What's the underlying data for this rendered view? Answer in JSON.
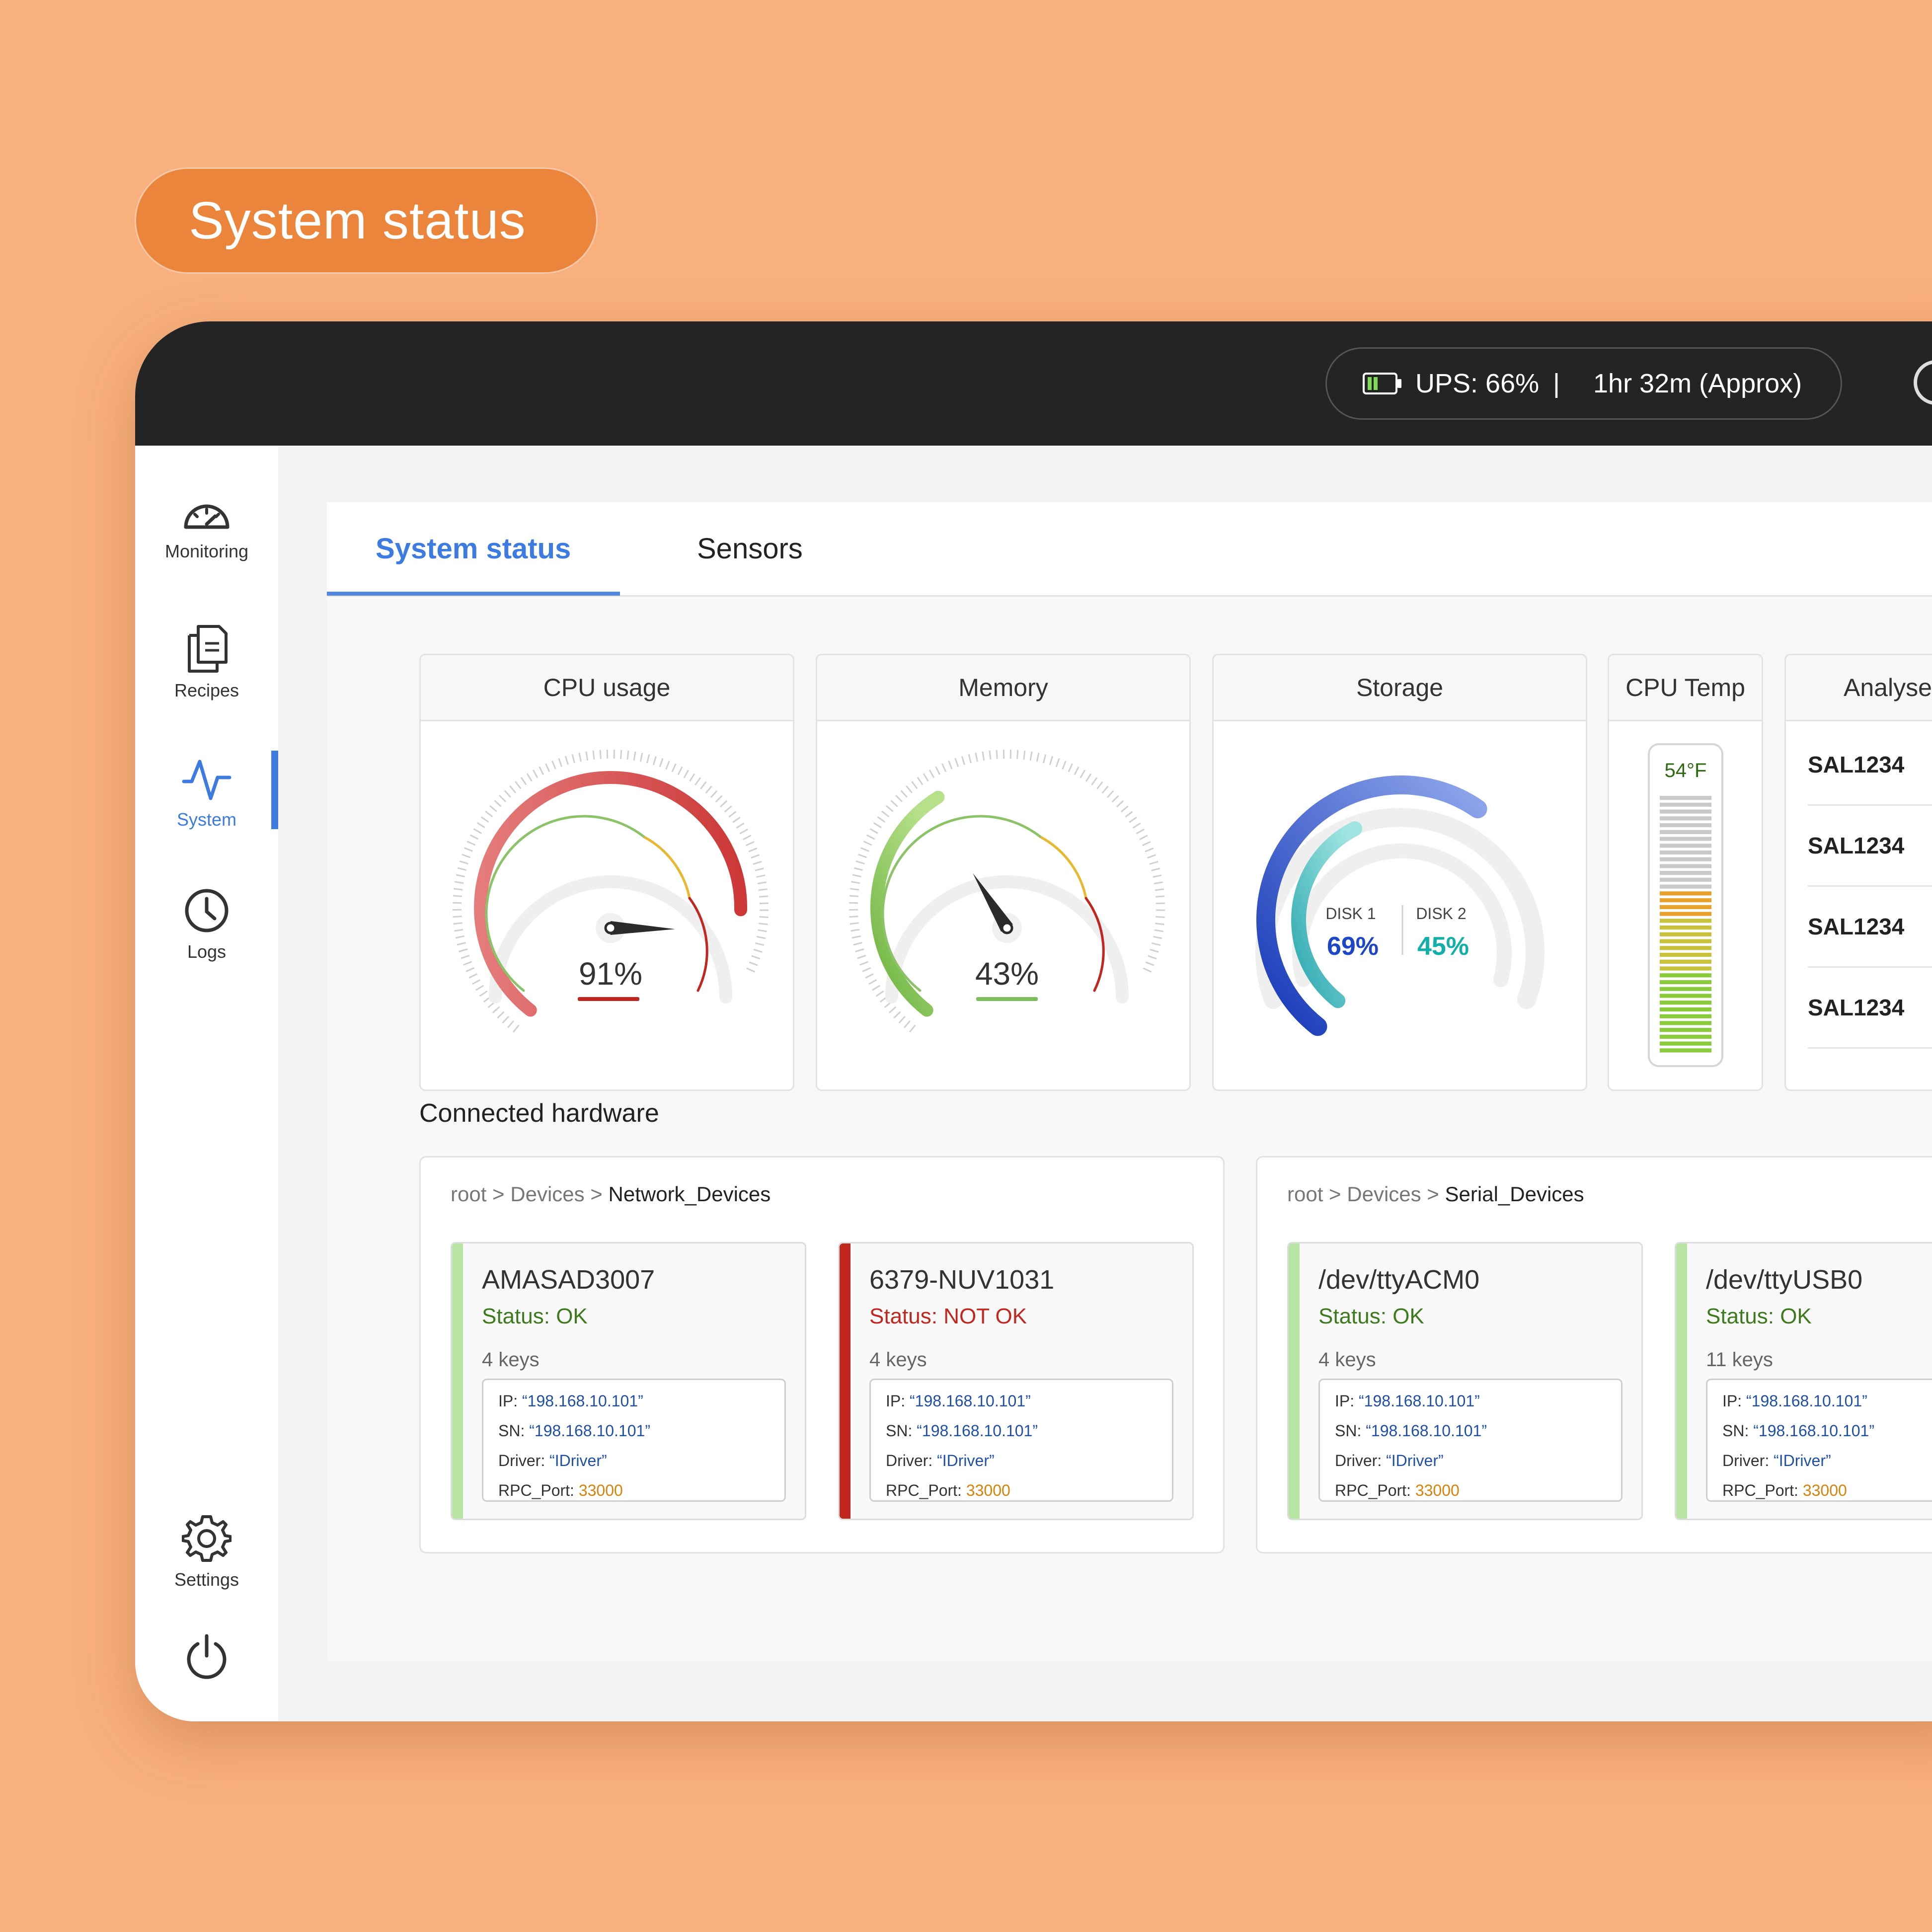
{
  "badge": {
    "title": "System status"
  },
  "topbar": {
    "ups_label": "UPS: 66%",
    "separator": "|",
    "runtime": "1hr 32m (Approx)"
  },
  "sidebar": {
    "items": [
      {
        "label": "Monitoring",
        "icon": "speedometer-icon"
      },
      {
        "label": "Recipes",
        "icon": "documents-icon"
      },
      {
        "label": "System",
        "icon": "activity-icon",
        "active": true
      },
      {
        "label": "Logs",
        "icon": "clock-icon"
      },
      {
        "label": "Settings",
        "icon": "gear-icon"
      },
      {
        "label": "",
        "icon": "power-icon"
      }
    ]
  },
  "tabs": [
    {
      "label": "System status",
      "active": true
    },
    {
      "label": "Sensors"
    }
  ],
  "widgets": {
    "cpu": {
      "title": "CPU usage",
      "value": "91%",
      "fraction": 0.91
    },
    "memory": {
      "title": "Memory",
      "value": "43%",
      "fraction": 0.43
    },
    "storage": {
      "title": "Storage",
      "disk1": {
        "label": "DISK 1",
        "value": "69%",
        "fraction": 0.69
      },
      "disk2": {
        "label": "DISK 2",
        "value": "45%",
        "fraction": 0.45
      }
    },
    "cpu_temp": {
      "title": "CPU Temp",
      "value": "54°F",
      "level": 0.62
    },
    "analyse": {
      "title": "Analyse",
      "items": [
        "SAL1234",
        "SAL1234",
        "SAL1234",
        "SAL1234"
      ]
    }
  },
  "hardware": {
    "title": "Connected hardware",
    "groups": [
      {
        "crumb_root": "root",
        "crumb_mid": "Devices",
        "crumb_leaf": "Network_Devices",
        "devices": [
          {
            "name": "AMASAD3007",
            "status": "Status: OK",
            "ok": true,
            "keys": "4 keys",
            "ip": "“198.168.10.101”",
            "sn": "“198.168.10.101”",
            "driver": "“IDriver”",
            "rpc": "33000"
          },
          {
            "name": "6379-NUV1031",
            "status": "Status: NOT OK",
            "ok": false,
            "keys": "4 keys",
            "ip": "“198.168.10.101”",
            "sn": "“198.168.10.101”",
            "driver": "“IDriver”",
            "rpc": "33000"
          }
        ]
      },
      {
        "crumb_root": "root",
        "crumb_mid": "Devices",
        "crumb_leaf": "Serial_Devices",
        "devices": [
          {
            "name": "/dev/ttyACM0",
            "status": "Status: OK",
            "ok": true,
            "keys": "4 keys",
            "ip": "“198.168.10.101”",
            "sn": "“198.168.10.101”",
            "driver": "“IDriver”",
            "rpc": "33000"
          },
          {
            "name": "/dev/ttyUSB0",
            "status": "Status: OK",
            "ok": true,
            "keys": "11 keys",
            "ip": "“198.168.10.101”",
            "sn": "“198.168.10.101”",
            "driver": "“IDriver”",
            "rpc": "33000"
          }
        ]
      }
    ],
    "key_labels": {
      "ip": "IP:",
      "sn": "SN:",
      "driver": "Driver:",
      "rpc": "RPC_Port:"
    }
  },
  "colors": {
    "accent": "#3D7BE0",
    "ok": "#3E7A1E",
    "not_ok": "#C0271E",
    "ok_bar": "#B9E5A4",
    "not_ok_bar": "#C0271E",
    "badge": "#EC853C"
  }
}
